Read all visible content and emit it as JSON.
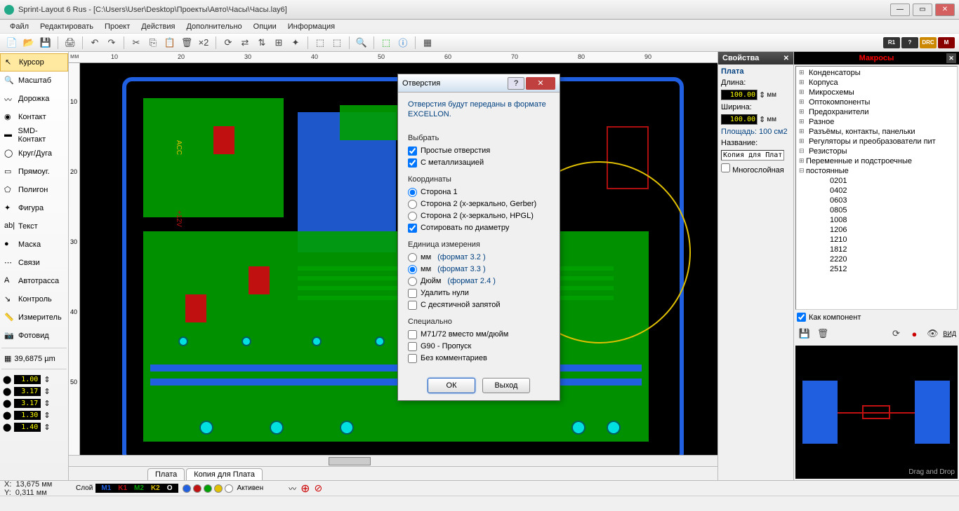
{
  "title": "Sprint-Layout 6 Rus - [C:\\Users\\User\\Desktop\\Проекты\\Авто\\Часы\\Часы.lay6]",
  "menu": [
    "Файл",
    "Редактировать",
    "Проект",
    "Действия",
    "Дополнительно",
    "Опции",
    "Информация"
  ],
  "toolbar_badges": [
    "R1",
    "?",
    "DRC",
    "M"
  ],
  "tools": [
    {
      "label": "Курсор",
      "active": true
    },
    {
      "label": "Масштаб"
    },
    {
      "label": "Дорожка"
    },
    {
      "label": "Контакт"
    },
    {
      "label": "SMD-Контакт"
    },
    {
      "label": "Круг/Дуга"
    },
    {
      "label": "Прямоуг."
    },
    {
      "label": "Полигон"
    },
    {
      "label": "Фигура"
    },
    {
      "label": "Текст"
    },
    {
      "label": "Маска"
    },
    {
      "label": "Связи"
    },
    {
      "label": "Автотрасса"
    },
    {
      "label": "Контроль"
    },
    {
      "label": "Измеритель"
    },
    {
      "label": "Фотовид"
    }
  ],
  "grid_value": "39,6875 µm",
  "params": [
    "1.00",
    "3.17",
    "3.17",
    "1.30",
    "1.40"
  ],
  "ruler_ticks": [
    "10",
    "20",
    "30",
    "40",
    "50",
    "60",
    "70",
    "80",
    "90"
  ],
  "ruler_v_ticks": [
    "10",
    "20",
    "30",
    "40",
    "50"
  ],
  "tabs": [
    {
      "label": "Плата",
      "active": false
    },
    {
      "label": "Копия для Плата",
      "active": true
    }
  ],
  "props": {
    "title": "Свойства",
    "section": "Плата",
    "length_lbl": "Длина:",
    "length_val": "100.00",
    "width_lbl": "Ширина:",
    "width_val": "100.00",
    "unit": "мм",
    "area_lbl": "Площадь:",
    "area_val": "100 см2",
    "name_lbl": "Название:",
    "name_val": "Копия для Плат",
    "multilayer": "Многослойная"
  },
  "macros": {
    "title": "Макросы",
    "items": [
      "Конденсаторы",
      "Корпуса",
      "Микросхемы",
      "Оптокомпоненты",
      "Предохранители",
      "Разное",
      "Разъёмы, контакты, панельки",
      "Регуляторы и преобразователи пит",
      "Резисторы"
    ],
    "resistors_sub": [
      "Переменные и подстроечные",
      "постоянные"
    ],
    "sizes": [
      "0201",
      "0402",
      "0603",
      "0805",
      "1008",
      "1206",
      "1210",
      "1812",
      "2220",
      "2512"
    ],
    "as_component": "Как компонент",
    "view": "ВИД",
    "dragdrop": "Drag and Drop"
  },
  "dialog": {
    "title": "Отверстия",
    "info": "Отверстия будут переданы в формате EXCELLON.",
    "select": "Выбрать",
    "simple": "Простые отверстия",
    "plated": "С металлизацией",
    "coords": "Координаты",
    "side1": "Сторона 1",
    "side2g": "Сторона 2 (x-зеркально, Gerber)",
    "side2h": "Сторона 2 (x-зеркально, HPGL)",
    "sortdia": "Сотировать по диаметру",
    "unit_section": "Единица измерения",
    "mm1": "мм",
    "fmt1": "(формат 3.2 )",
    "mm2": "мм",
    "fmt2": "(формат 3.3 )",
    "inch": "Дюйм",
    "fmt3": "(формат 2.4 )",
    "stripz": "Удалить нули",
    "decimal": "С десятичной запятой",
    "special": "Специально",
    "m71": "M71/72 вместо мм/дюйм",
    "g90": "G90 - Пропуск",
    "nocom": "Без комментариев",
    "ok": "ОК",
    "exit": "Выход"
  },
  "status": {
    "x_lbl": "X:",
    "x_val": "13,675 мм",
    "y_lbl": "Y:",
    "y_val": "0,311 мм",
    "layer_lbl": "Слой",
    "layers": [
      {
        "t": "M1",
        "c": "#2060e0"
      },
      {
        "t": "K1",
        "c": "#c01010"
      },
      {
        "t": "M2",
        "c": "#00a000"
      },
      {
        "t": "K2",
        "c": "#e0c000"
      },
      {
        "t": "O",
        "c": "#ffffff"
      }
    ],
    "active": "Активен"
  },
  "colors": {
    "pcb_bg": "#000000",
    "trace_top": "#2060e0",
    "trace_bot": "#00a000",
    "pad_cyan": "#00e0e0",
    "silkscreen": "#e0c000",
    "smd_red": "#c01010"
  },
  "preview_resistor": {
    "body_color": "#c01010",
    "pad_color": "#2060e0"
  }
}
